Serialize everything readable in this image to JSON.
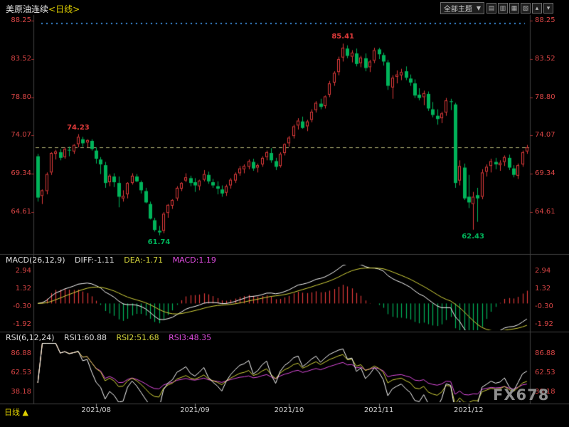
{
  "header": {
    "title": "美原油连续",
    "timeframe": "<日线>",
    "theme_dropdown": "全部主题",
    "dropdown_arrow": "▼",
    "toolbar_buttons": [
      "▤",
      "▥",
      "▦",
      "▧",
      "▴",
      "▾"
    ]
  },
  "bottom": {
    "tab_label": "日线",
    "tab_arrow": "▲"
  },
  "watermark": "FX678",
  "macd_header": {
    "name": "MACD(26,12,9)",
    "diff_label": "DIFF:-1.11",
    "dea_label": "DEA:-1.71",
    "macd_label": "MACD:1.19"
  },
  "rsi_header": {
    "name": "RSI(6,12,24)",
    "rsi1_label": "RSI1:60.88",
    "rsi2_label": "RSI2:51.68",
    "rsi3_label": "RSI3:48.35"
  },
  "colors": {
    "up": "#e23b3b",
    "down": "#00b35a",
    "axis_text": "#d94545",
    "diff_line": "#ffffff",
    "dea_line": "#d6d63c",
    "rsi1": "#ffffff",
    "rsi2": "#d6d63c",
    "rsi3": "#e14de1",
    "current_price_line": "#b8b878",
    "top_dots": "#3e8fde",
    "border": "#3f3f3f",
    "date_text": "#cfcfcf"
  },
  "annotations": [
    {
      "label": "74.23",
      "index": 9,
      "price": 74.23,
      "color": "#e23b3b",
      "placement": "above"
    },
    {
      "label": "85.41",
      "index": 68,
      "price": 85.41,
      "color": "#e23b3b",
      "placement": "above"
    },
    {
      "label": "61.74",
      "index": 27,
      "price": 61.74,
      "color": "#00b35a",
      "placement": "below"
    },
    {
      "label": "62.43",
      "index": 97,
      "price": 62.43,
      "color": "#00b35a",
      "placement": "below"
    }
  ],
  "chart_data": {
    "type": "candlestick",
    "title": "美原油连续<日线>",
    "panels": [
      "price",
      "MACD(26,12,9)",
      "RSI(6,12,24)"
    ],
    "price_axis_labels": [
      88.25,
      83.52,
      78.8,
      74.07,
      69.34,
      64.61
    ],
    "macd_axis_labels": [
      2.94,
      1.32,
      -0.3,
      -1.92
    ],
    "rsi_axis_labels": [
      86.88,
      62.53,
      38.18
    ],
    "current_price": 72.6,
    "high_label": 85.41,
    "low_label": 61.74,
    "x_ticks": [
      {
        "index": 13,
        "label": "2021/08"
      },
      {
        "index": 35,
        "label": "2021/09"
      },
      {
        "index": 56,
        "label": "2021/10"
      },
      {
        "index": 76,
        "label": "2021/11"
      },
      {
        "index": 96,
        "label": "2021/12"
      }
    ],
    "indicators": [
      {
        "name": "MACD",
        "params": [
          26,
          12,
          9
        ],
        "current": {
          "diff": -1.11,
          "dea": -1.71,
          "macd": 1.19
        }
      },
      {
        "name": "RSI",
        "params": [
          6,
          12,
          24
        ],
        "current": {
          "rsi1": 60.88,
          "rsi2": 51.68,
          "rsi3": 48.35
        }
      }
    ],
    "candle_format": [
      "open",
      "high",
      "low",
      "close"
    ],
    "candles": [
      [
        71.5,
        71.8,
        65.9,
        66.4
      ],
      [
        66.6,
        67.4,
        65.6,
        67.3
      ],
      [
        67.2,
        69.5,
        66.8,
        69.3
      ],
      [
        69.5,
        72.0,
        69.2,
        71.9
      ],
      [
        71.8,
        72.3,
        71.1,
        72.1
      ],
      [
        72.0,
        72.4,
        71.0,
        71.3
      ],
      [
        71.4,
        72.6,
        71.2,
        72.4
      ],
      [
        72.3,
        72.7,
        71.5,
        72.2
      ],
      [
        72.1,
        73.0,
        71.8,
        72.9
      ],
      [
        73.0,
        74.23,
        72.6,
        73.9
      ],
      [
        73.6,
        73.9,
        72.7,
        73.1
      ],
      [
        73.2,
        73.6,
        72.6,
        73.5
      ],
      [
        73.4,
        73.6,
        72.2,
        72.4
      ],
      [
        72.2,
        72.6,
        70.6,
        71.2
      ],
      [
        71.1,
        71.4,
        69.3,
        70.5
      ],
      [
        70.4,
        70.8,
        67.6,
        68.2
      ],
      [
        68.3,
        69.3,
        67.8,
        69.1
      ],
      [
        69.0,
        69.4,
        67.7,
        68.3
      ],
      [
        68.2,
        69.0,
        65.2,
        66.5
      ],
      [
        66.3,
        67.3,
        65.9,
        66.6
      ],
      [
        66.8,
        68.3,
        66.3,
        68.2
      ],
      [
        68.2,
        69.4,
        68.0,
        69.1
      ],
      [
        69.0,
        69.3,
        68.3,
        68.4
      ],
      [
        68.3,
        68.5,
        66.9,
        67.3
      ],
      [
        67.2,
        67.6,
        65.7,
        65.8
      ],
      [
        65.6,
        65.9,
        63.7,
        63.8
      ],
      [
        63.6,
        63.9,
        62.2,
        62.4
      ],
      [
        62.3,
        62.9,
        61.74,
        62.1
      ],
      [
        62.3,
        64.6,
        62.0,
        64.4
      ],
      [
        64.5,
        65.6,
        63.9,
        65.5
      ],
      [
        65.4,
        66.2,
        65.0,
        66.1
      ],
      [
        66.3,
        67.8,
        66.0,
        67.6
      ],
      [
        67.5,
        68.3,
        67.2,
        68.2
      ],
      [
        68.5,
        69.4,
        68.3,
        68.9
      ],
      [
        68.8,
        69.1,
        67.8,
        68.2
      ],
      [
        68.3,
        68.8,
        67.1,
        67.9
      ],
      [
        67.8,
        68.6,
        67.3,
        68.5
      ],
      [
        68.6,
        69.8,
        68.4,
        69.3
      ],
      [
        69.2,
        69.6,
        68.1,
        68.4
      ],
      [
        68.3,
        68.7,
        67.6,
        67.9
      ],
      [
        67.8,
        68.4,
        66.8,
        67.5
      ],
      [
        67.4,
        67.9,
        66.5,
        66.9
      ],
      [
        67.0,
        68.0,
        66.6,
        67.8
      ],
      [
        67.9,
        68.8,
        67.5,
        68.6
      ],
      [
        68.5,
        69.5,
        68.2,
        69.3
      ],
      [
        69.4,
        70.3,
        69.1,
        70.0
      ],
      [
        69.9,
        70.5,
        69.4,
        70.3
      ],
      [
        70.2,
        71.1,
        69.9,
        70.9
      ],
      [
        70.8,
        71.2,
        69.7,
        70.0
      ],
      [
        70.1,
        70.6,
        69.5,
        70.4
      ],
      [
        70.5,
        71.5,
        70.2,
        71.3
      ],
      [
        71.4,
        72.2,
        71.0,
        72.0
      ],
      [
        71.9,
        72.5,
        70.7,
        71.0
      ],
      [
        70.9,
        71.3,
        69.8,
        70.2
      ],
      [
        70.3,
        72.0,
        70.1,
        71.8
      ],
      [
        71.9,
        73.1,
        71.6,
        73.0
      ],
      [
        73.1,
        74.0,
        72.7,
        73.8
      ],
      [
        74.0,
        75.4,
        73.7,
        75.2
      ],
      [
        75.3,
        76.2,
        74.8,
        75.9
      ],
      [
        75.8,
        76.4,
        74.9,
        75.0
      ],
      [
        75.2,
        76.0,
        74.6,
        75.8
      ],
      [
        76.0,
        77.3,
        75.7,
        77.0
      ],
      [
        77.2,
        78.3,
        76.9,
        78.1
      ],
      [
        78.0,
        78.6,
        77.3,
        77.6
      ],
      [
        77.7,
        79.0,
        77.4,
        78.9
      ],
      [
        79.1,
        80.8,
        78.8,
        80.5
      ],
      [
        80.6,
        82.0,
        80.2,
        81.8
      ],
      [
        81.9,
        83.8,
        81.5,
        83.5
      ],
      [
        83.7,
        85.41,
        83.2,
        84.9
      ],
      [
        84.8,
        85.2,
        83.6,
        83.9
      ],
      [
        83.8,
        84.6,
        83.1,
        84.3
      ],
      [
        84.2,
        84.8,
        82.6,
        82.9
      ],
      [
        83.0,
        83.9,
        82.5,
        83.7
      ],
      [
        83.6,
        84.2,
        82.0,
        82.4
      ],
      [
        82.5,
        83.4,
        81.9,
        83.2
      ],
      [
        83.3,
        84.9,
        83.0,
        84.6
      ],
      [
        84.7,
        84.9,
        83.5,
        84.1
      ],
      [
        84.0,
        84.3,
        82.7,
        83.2
      ],
      [
        83.1,
        83.4,
        79.7,
        80.2
      ],
      [
        80.0,
        81.5,
        78.6,
        81.2
      ],
      [
        81.3,
        82.1,
        80.5,
        81.6
      ],
      [
        81.5,
        82.3,
        80.9,
        81.9
      ],
      [
        82.0,
        82.6,
        80.9,
        81.2
      ],
      [
        81.1,
        81.6,
        80.2,
        80.6
      ],
      [
        80.5,
        81.0,
        78.7,
        79.0
      ],
      [
        79.1,
        79.9,
        78.4,
        78.7
      ],
      [
        78.8,
        79.6,
        77.8,
        79.3
      ],
      [
        79.2,
        79.5,
        77.1,
        77.4
      ],
      [
        77.3,
        78.2,
        76.3,
        76.6
      ],
      [
        76.5,
        77.3,
        75.4,
        76.1
      ],
      [
        76.2,
        77.0,
        75.6,
        76.8
      ],
      [
        76.9,
        78.7,
        76.5,
        78.4
      ],
      [
        78.3,
        78.6,
        77.2,
        78.2
      ],
      [
        77.9,
        78.1,
        67.6,
        68.2
      ],
      [
        68.5,
        71.0,
        67.9,
        70.3
      ],
      [
        70.1,
        70.6,
        66.1,
        66.3
      ],
      [
        66.5,
        69.2,
        65.1,
        65.8
      ],
      [
        65.6,
        67.1,
        62.43,
        66.5
      ],
      [
        66.7,
        67.6,
        63.4,
        66.3
      ],
      [
        66.5,
        69.9,
        66.2,
        69.5
      ],
      [
        69.6,
        70.5,
        69.0,
        70.2
      ],
      [
        70.3,
        71.2,
        69.5,
        70.9
      ],
      [
        70.8,
        71.3,
        69.9,
        70.5
      ],
      [
        70.4,
        71.0,
        69.7,
        70.7
      ],
      [
        70.8,
        71.6,
        70.3,
        71.4
      ],
      [
        71.3,
        71.7,
        69.8,
        70.1
      ],
      [
        70.0,
        70.4,
        68.9,
        69.2
      ],
      [
        69.1,
        70.6,
        68.7,
        70.4
      ],
      [
        70.5,
        72.2,
        70.2,
        72.0
      ],
      [
        72.1,
        72.9,
        71.8,
        72.6
      ]
    ]
  }
}
